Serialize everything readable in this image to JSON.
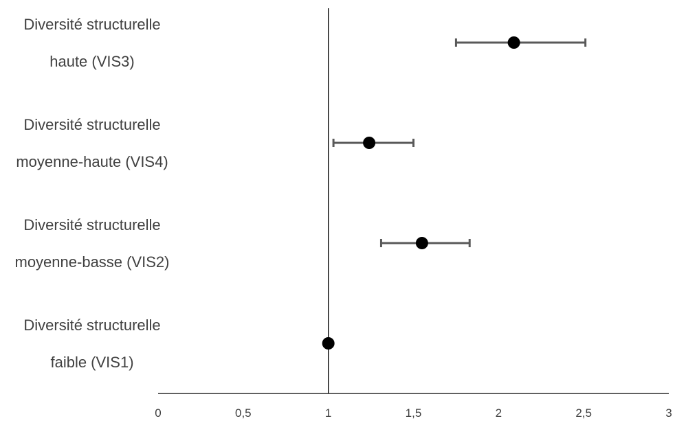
{
  "chart_data": {
    "type": "scatter",
    "title": "",
    "xlabel": "",
    "ylabel": "",
    "xlim": [
      0,
      3
    ],
    "x_ticks": [
      "0",
      "0,5",
      "1",
      "1,5",
      "2",
      "2,5",
      "3"
    ],
    "x_tick_values": [
      0,
      0.5,
      1,
      1.5,
      2,
      2.5,
      3
    ],
    "reference_line_x": 1,
    "grid": false,
    "legend": "none",
    "categories": [
      {
        "line1": "Diversité structurelle",
        "line2": "haute (VIS3)"
      },
      {
        "line1": "Diversité structurelle",
        "line2": "moyenne-haute (VIS4)"
      },
      {
        "line1": "Diversité structurelle",
        "line2": "moyenne-basse (VIS2)"
      },
      {
        "line1": "Diversité structurelle",
        "line2": "faible (VIS1)"
      }
    ],
    "points": [
      {
        "value": 2.09,
        "ci_low": 1.75,
        "ci_high": 2.51
      },
      {
        "value": 1.24,
        "ci_low": 1.03,
        "ci_high": 1.5
      },
      {
        "value": 1.55,
        "ci_low": 1.31,
        "ci_high": 1.83
      },
      {
        "value": 1.0,
        "ci_low": null,
        "ci_high": null
      }
    ],
    "colors": {
      "marker": "#000000",
      "errorbar": "#595959",
      "axis": "#000000",
      "text": "#404040"
    }
  }
}
